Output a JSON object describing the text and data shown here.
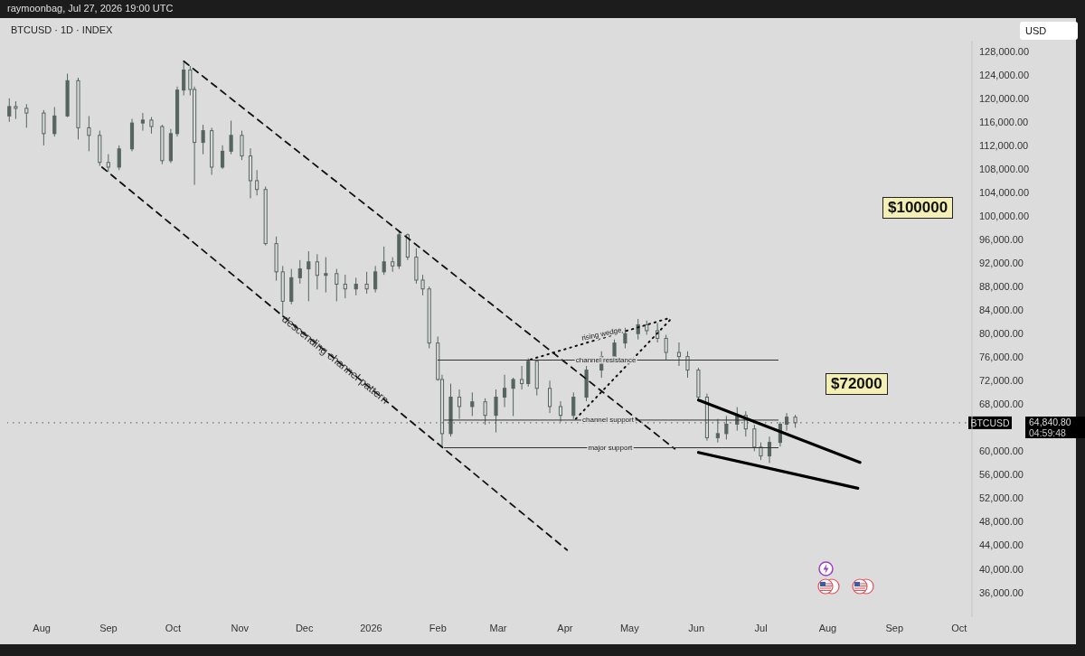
{
  "chart_data": {
    "type": "candlestick",
    "title": "BTCUSD · 1D · INDEX",
    "subtitle": "raymoonbag, Jul 27, 2026 19:00 UTC",
    "color": "#55655e",
    "x": [
      "2025-07-17",
      "2025-07-20",
      "2025-07-25",
      "2025-08-02",
      "2025-08-07",
      "2025-08-13",
      "2025-08-18",
      "2025-08-23",
      "2025-08-28",
      "2025-09-01",
      "2025-09-06",
      "2025-09-12",
      "2025-09-17",
      "2025-09-21",
      "2025-09-26",
      "2025-09-30",
      "2025-10-03",
      "2025-10-06",
      "2025-10-09",
      "2025-10-11",
      "2025-10-15",
      "2025-10-19",
      "2025-10-24",
      "2025-10-28",
      "2025-11-02",
      "2025-11-06",
      "2025-11-09",
      "2025-11-13",
      "2025-11-18",
      "2025-11-21",
      "2025-11-25",
      "2025-11-29",
      "2025-12-03",
      "2025-12-07",
      "2025-12-11",
      "2025-12-16",
      "2025-12-20",
      "2025-12-25",
      "2025-12-30",
      "2026-01-03",
      "2026-01-07",
      "2026-01-11",
      "2026-01-14",
      "2026-01-18",
      "2026-01-22",
      "2026-01-25",
      "2026-01-28",
      "2026-02-01",
      "2026-02-03",
      "2026-02-07",
      "2026-02-11",
      "2026-02-17",
      "2026-02-23",
      "2026-02-28",
      "2026-03-04",
      "2026-03-08",
      "2026-03-12",
      "2026-03-15",
      "2026-03-19",
      "2026-03-25",
      "2026-03-30",
      "2026-04-05",
      "2026-04-11",
      "2026-04-18",
      "2026-04-24",
      "2026-04-29",
      "2026-05-05",
      "2026-05-09",
      "2026-05-14",
      "2026-05-18",
      "2026-05-24",
      "2026-05-28",
      "2026-06-02",
      "2026-06-06",
      "2026-06-11",
      "2026-06-15",
      "2026-06-20",
      "2026-06-24",
      "2026-06-28",
      "2026-07-01",
      "2026-07-05",
      "2026-07-10",
      "2026-07-13",
      "2026-07-17"
    ],
    "ohlc": [
      [
        117000,
        120000,
        116000,
        118600
      ],
      [
        118600,
        119500,
        116500,
        118300
      ],
      [
        118300,
        119000,
        115000,
        117500
      ],
      [
        117500,
        118000,
        112000,
        114000
      ],
      [
        114000,
        118500,
        113500,
        117000
      ],
      [
        117000,
        124200,
        116800,
        123000
      ],
      [
        123000,
        123500,
        113000,
        115000
      ],
      [
        115000,
        117000,
        111000,
        113700
      ],
      [
        113700,
        114500,
        108500,
        109100
      ],
      [
        109100,
        110500,
        107500,
        108300
      ],
      [
        108300,
        112000,
        107800,
        111400
      ],
      [
        111400,
        116500,
        111000,
        115800
      ],
      [
        115800,
        117500,
        114500,
        116300
      ],
      [
        116300,
        116800,
        114000,
        115200
      ],
      [
        115200,
        115500,
        108800,
        109400
      ],
      [
        109400,
        114800,
        109000,
        114000
      ],
      [
        114000,
        122000,
        113500,
        121400
      ],
      [
        121400,
        126200,
        120500,
        124800
      ],
      [
        124800,
        125500,
        120500,
        121500
      ],
      [
        121500,
        122000,
        105300,
        112500
      ],
      [
        112500,
        115500,
        110500,
        114500
      ],
      [
        114500,
        115000,
        107000,
        108300
      ],
      [
        108300,
        112000,
        108000,
        111000
      ],
      [
        111000,
        116200,
        110500,
        113700
      ],
      [
        113700,
        114500,
        109500,
        110200
      ],
      [
        110200,
        111500,
        103000,
        106000
      ],
      [
        106000,
        107800,
        103500,
        104500
      ],
      [
        104500,
        105000,
        95000,
        95300
      ],
      [
        95300,
        96500,
        89000,
        90500
      ],
      [
        90500,
        91500,
        82800,
        85500
      ],
      [
        85500,
        91000,
        85000,
        89500
      ],
      [
        89500,
        92500,
        88500,
        91000
      ],
      [
        91000,
        94000,
        85500,
        92200
      ],
      [
        92200,
        93500,
        87500,
        89900
      ],
      [
        89900,
        93000,
        87000,
        90200
      ],
      [
        90200,
        91000,
        85500,
        88400
      ],
      [
        88400,
        90000,
        86000,
        87600
      ],
      [
        87600,
        89500,
        86500,
        88400
      ],
      [
        88400,
        90500,
        86800,
        87600
      ],
      [
        87600,
        91500,
        87000,
        90500
      ],
      [
        90500,
        94800,
        90000,
        92200
      ],
      [
        92200,
        93000,
        90500,
        91500
      ],
      [
        91500,
        97500,
        91000,
        96800
      ],
      [
        96800,
        97000,
        92500,
        93000
      ],
      [
        93000,
        94500,
        88500,
        89100
      ],
      [
        89100,
        90000,
        86500,
        87600
      ],
      [
        87600,
        88000,
        77500,
        78400
      ],
      [
        78400,
        79500,
        72000,
        72200
      ],
      [
        72200,
        73000,
        60700,
        63000
      ],
      [
        63000,
        71500,
        62500,
        69200
      ],
      [
        69200,
        70500,
        65500,
        67600
      ],
      [
        67600,
        70000,
        66000,
        68400
      ],
      [
        68400,
        69000,
        64500,
        66100
      ],
      [
        66100,
        70500,
        63200,
        69200
      ],
      [
        69200,
        73000,
        67500,
        70700
      ],
      [
        70700,
        72500,
        66000,
        72200
      ],
      [
        72200,
        74500,
        70500,
        71500
      ],
      [
        71500,
        75800,
        71000,
        75300
      ],
      [
        75300,
        75500,
        69500,
        70700
      ],
      [
        70700,
        72000,
        66500,
        67600
      ],
      [
        67600,
        68500,
        65000,
        66100
      ],
      [
        66100,
        70000,
        65500,
        69200
      ],
      [
        69200,
        74500,
        68500,
        73800
      ],
      [
        73800,
        77000,
        72500,
        76100
      ],
      [
        76100,
        79000,
        75000,
        78400
      ],
      [
        78400,
        81000,
        77500,
        80000
      ],
      [
        80000,
        82500,
        79000,
        81500
      ],
      [
        81500,
        82200,
        79800,
        80500
      ],
      [
        80500,
        81800,
        78500,
        79200
      ],
      [
        79200,
        79800,
        75500,
        76800
      ],
      [
        76800,
        78500,
        74500,
        76100
      ],
      [
        76100,
        77000,
        72500,
        73800
      ],
      [
        73800,
        74200,
        68500,
        69200
      ],
      [
        69200,
        69800,
        61800,
        62300
      ],
      [
        62300,
        65500,
        61500,
        63000
      ],
      [
        63000,
        66000,
        62000,
        64600
      ],
      [
        64600,
        67500,
        63500,
        66100
      ],
      [
        66100,
        66800,
        62500,
        63800
      ],
      [
        63800,
        64500,
        60000,
        60700
      ],
      [
        60700,
        61500,
        58500,
        59200
      ],
      [
        59200,
        62500,
        58000,
        61500
      ],
      [
        61500,
        65000,
        60800,
        64600
      ],
      [
        64600,
        66500,
        63500,
        65800
      ],
      [
        65800,
        66200,
        64000,
        64840.8
      ]
    ],
    "series": [
      {
        "type": "line",
        "x": [
          "2025-10-06",
          "2026-05-22"
        ],
        "values": [
          126300,
          60400
        ],
        "color": "#111111",
        "line_style": "dashed"
      },
      {
        "type": "line",
        "x": [
          "2025-08-29",
          "2026-04-02"
        ],
        "values": [
          108300,
          43200
        ],
        "color": "#111111",
        "line_style": "dashed"
      },
      {
        "type": "line",
        "x": [
          "2026-03-16",
          "2026-05-20"
        ],
        "values": [
          75600,
          82700
        ],
        "color": "#111111",
        "line_style": "dotted"
      },
      {
        "type": "line",
        "x": [
          "2026-04-06",
          "2026-05-20"
        ],
        "values": [
          65500,
          82400
        ],
        "color": "#111111",
        "line_style": "dotted"
      },
      {
        "type": "line",
        "x": [
          "2026-02-01",
          "2026-07-09"
        ],
        "values": [
          75500,
          75500
        ],
        "color": "#333333",
        "line_style": "solid"
      },
      {
        "type": "line",
        "x": [
          "2026-02-04",
          "2026-07-09"
        ],
        "values": [
          65300,
          65300
        ],
        "color": "#333333",
        "line_style": "solid"
      },
      {
        "type": "line",
        "x": [
          "2026-02-04",
          "2026-07-09"
        ],
        "values": [
          60600,
          60600
        ],
        "color": "#333333",
        "line_style": "solid"
      },
      {
        "type": "line",
        "x": [
          "2026-06-02",
          "2026-08-16"
        ],
        "values": [
          68700,
          58100
        ],
        "color": "#000000",
        "line_style": "solid"
      },
      {
        "type": "line",
        "x": [
          "2026-06-02",
          "2026-08-15"
        ],
        "values": [
          59800,
          53700
        ],
        "color": "#000000",
        "line_style": "solid"
      }
    ],
    "ref_lines": [
      {
        "axis": "y",
        "value": 64840.8,
        "label": "BTCUSD",
        "color": "#555555",
        "line_style": "dotted"
      }
    ],
    "annotations": [
      "descending channel pattern",
      {
        "text": "rising wedge",
        "x": "2026-04-18",
        "y": 79000
      },
      {
        "text": "channel resistance",
        "x": "2026-04-20",
        "y": 75500
      },
      {
        "text": "channel support",
        "x": "2026-04-21",
        "y": 65300
      },
      {
        "text": "major support",
        "x": "2026-04-22",
        "y": 60600
      },
      "$100000",
      "$72000",
      "USD",
      "04:59:48",
      "64,840.80"
    ],
    "xlim": [
      "2025-07-16",
      "2026-10-07"
    ],
    "xticks": [
      {
        "value": "2025-08-01",
        "label": "Aug"
      },
      {
        "value": "2025-09-01",
        "label": "Sep"
      },
      {
        "value": "2025-10-01",
        "label": "Oct"
      },
      {
        "value": "2025-11-01",
        "label": "Nov"
      },
      {
        "value": "2025-12-01",
        "label": "Dec"
      },
      {
        "value": "2026-01-01",
        "label": "2026"
      },
      {
        "value": "2026-02-01",
        "label": "Feb"
      },
      {
        "value": "2026-03-01",
        "label": "Mar"
      },
      {
        "value": "2026-04-01",
        "label": "Apr"
      },
      {
        "value": "2026-05-01",
        "label": "May"
      },
      {
        "value": "2026-06-01",
        "label": "Jun"
      },
      {
        "value": "2026-07-01",
        "label": "Jul"
      },
      {
        "value": "2026-08-01",
        "label": "Aug"
      },
      {
        "value": "2026-09-01",
        "label": "Sep"
      },
      {
        "value": "2026-10-01",
        "label": "Oct"
      }
    ],
    "ylim": [
      31800,
      129800
    ],
    "yticks": [
      {
        "value": 36000,
        "label": "36,000.00"
      },
      {
        "value": 40000,
        "label": "40,000.00"
      },
      {
        "value": 44000,
        "label": "44,000.00"
      },
      {
        "value": 48000,
        "label": "48,000.00"
      },
      {
        "value": 52000,
        "label": "52,000.00"
      },
      {
        "value": 56000,
        "label": "56,000.00"
      },
      {
        "value": 60000,
        "label": "60,000.00"
      },
      {
        "value": 68000,
        "label": "68,000.00"
      },
      {
        "value": 72000,
        "label": "72,000.00"
      },
      {
        "value": 76000,
        "label": "76,000.00"
      },
      {
        "value": 80000,
        "label": "80,000.00"
      },
      {
        "value": 84000,
        "label": "84,000.00"
      },
      {
        "value": 88000,
        "label": "88,000.00"
      },
      {
        "value": 92000,
        "label": "92,000.00"
      },
      {
        "value": 96000,
        "label": "96,000.00"
      },
      {
        "value": 100000,
        "label": "100,000.00"
      },
      {
        "value": 104000,
        "label": "104,000.00"
      },
      {
        "value": 108000,
        "label": "108,000.00"
      },
      {
        "value": 112000,
        "label": "112,000.00"
      },
      {
        "value": 116000,
        "label": "116,000.00"
      },
      {
        "value": 120000,
        "label": "120,000.00"
      },
      {
        "value": 124000,
        "label": "124,000.00"
      },
      {
        "value": 128000,
        "label": "128,000.00"
      }
    ]
  }
}
